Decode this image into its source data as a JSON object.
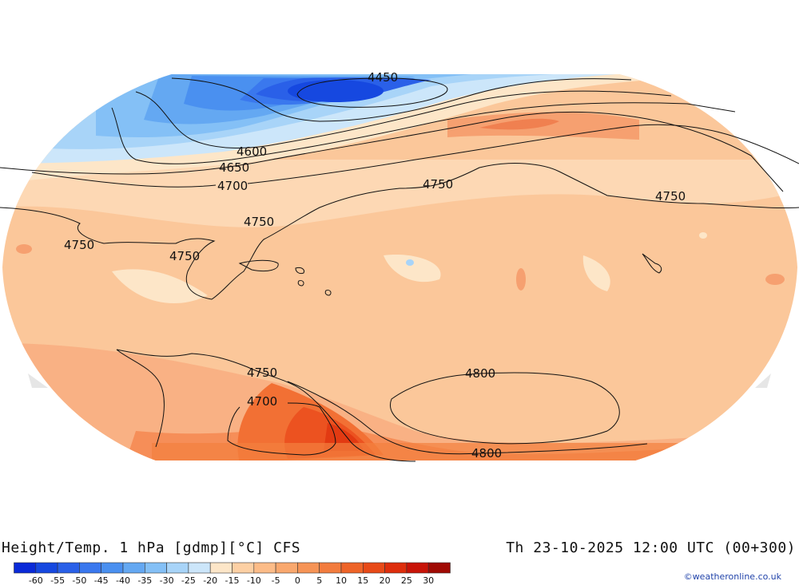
{
  "header": {
    "title": "Height/Temp. 1 hPa [gdmp][°C] CFS",
    "valid_time": "Th 23-10-2025 12:00 UTC (00+300)"
  },
  "credit": "©weatheronline.co.uk",
  "legend": {
    "ticks": [
      "-60",
      "-55",
      "-50",
      "-45",
      "-40",
      "-35",
      "-30",
      "-25",
      "-20",
      "-15",
      "-10",
      "-5",
      "0",
      "5",
      "10",
      "15",
      "20",
      "25",
      "30"
    ],
    "colors": [
      "#0a2ad8",
      "#1648e0",
      "#2a60e8",
      "#3a78ee",
      "#4a90f0",
      "#64a8f2",
      "#84c0f6",
      "#a8d4f8",
      "#cce6fa",
      "#fde6c8",
      "#fdd0a4",
      "#fcbc88",
      "#f9a86e",
      "#f69456",
      "#f27c3e",
      "#ee6428",
      "#e84a18",
      "#de2e0c",
      "#c81408",
      "#a00a04"
    ]
  },
  "contour_labels": [
    {
      "id": "4450",
      "text": "4450"
    },
    {
      "id": "4600",
      "text": "4600"
    },
    {
      "id": "4650",
      "text": "4650"
    },
    {
      "id": "4700-n",
      "text": "4700"
    },
    {
      "id": "4750-a",
      "text": "4750"
    },
    {
      "id": "4750-b",
      "text": "4750"
    },
    {
      "id": "4750-c",
      "text": "4750"
    },
    {
      "id": "4750-d",
      "text": "4750"
    },
    {
      "id": "4750-e",
      "text": "4750"
    },
    {
      "id": "4750-s",
      "text": "4750"
    },
    {
      "id": "4700-s",
      "text": "4700"
    },
    {
      "id": "4800-a",
      "text": "4800"
    },
    {
      "id": "4800-b",
      "text": "4800"
    }
  ]
}
